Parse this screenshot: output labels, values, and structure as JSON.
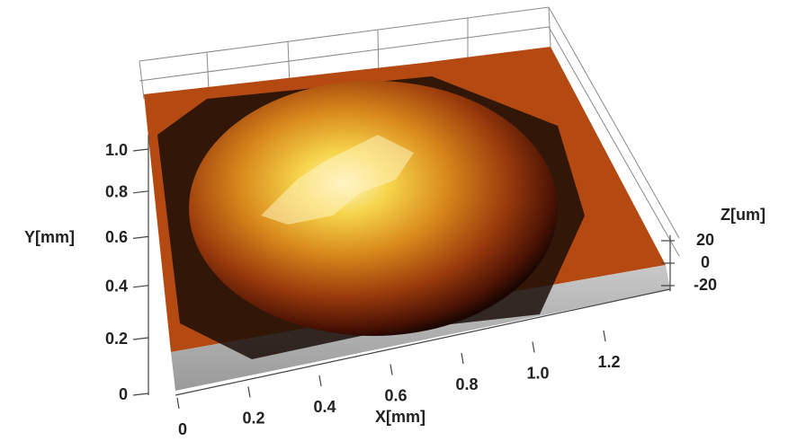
{
  "chart_data": {
    "type": "surface3d",
    "x_label": "X[mm]",
    "y_label": "Y[mm]",
    "z_label": "Z[um]",
    "xlim": [
      0,
      1.35
    ],
    "ylim": [
      0,
      1.1
    ],
    "zlim": [
      -25,
      25
    ],
    "xticks": [
      0,
      0.2,
      0.4,
      0.6,
      0.8,
      {
        "value": 1,
        "label": "1.0"
      },
      1.2
    ],
    "yticks": [
      0,
      0.2,
      0.4,
      0.6,
      0.8,
      {
        "value": 1,
        "label": "1.0"
      }
    ],
    "zticks": [
      -20,
      0,
      20
    ]
  }
}
